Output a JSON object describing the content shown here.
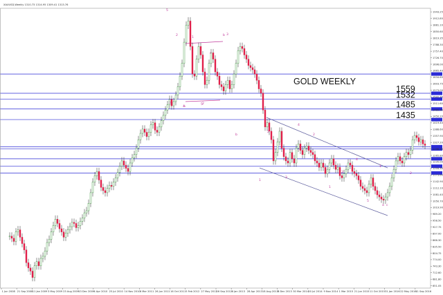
{
  "chart_data": {
    "type": "candlestick",
    "title": "GOLD WEEKLY",
    "header": "XAUUSD,Weekly  1310.73  1314.95  1309.41  1313.76",
    "y_axis": {
      "min": 640,
      "max": 1960,
      "ticks": [
        "1943.25",
        "1912.85",
        "1881.10",
        "1850.60",
        "1819.35",
        "1788.30",
        "1757.40",
        "1726.70",
        "1696.00",
        "1665.40",
        "1634.65",
        "1603.75",
        "1573.00",
        "1542.30",
        "1511.60",
        "1480.90",
        "1450.20",
        "1419.40",
        "1388.60",
        "1357.90",
        "1327.20",
        "1296.50",
        "1265.80",
        "1235.00",
        "1204.30",
        "1173.60",
        "1142.90",
        "1112.10",
        "1081.40",
        "1050.70",
        "1019.90",
        "989.20",
        "958.50",
        "927.75",
        "897.00",
        "866.30",
        "835.50",
        "804.75",
        "774.00",
        "743.30",
        "712.60",
        "681.80",
        "651.05"
      ]
    },
    "x_axis": {
      "labels": [
        "1 Jun 2008",
        "21 Sep 2008",
        "11 Jan 2009",
        "3 May 2009",
        "23 Aug 2009",
        "13 Dec 2009",
        "4 Apr 2010",
        "25 Jul 2010",
        "14 Nov 2010",
        "6 Mar 2011",
        "26 Jun 2011",
        "16 Oct 2011",
        "5 Feb 2012",
        "27 May 2012",
        "16 Sep 2012",
        "6 Jan 2013",
        "28 Apr 2013",
        "18 Aug 2013",
        "8 Dec 2013",
        "30 Mar 2014",
        "20 Jul 2014",
        "9 Nov 2014",
        "1 Mar 2015",
        "21 Jun 2015",
        "11 Oct 2015",
        "31 Jan 2016",
        "22 May 2016",
        "11 Sep 2016"
      ]
    },
    "horizontal_levels": [
      {
        "value": 1650.0,
        "label": ""
      },
      {
        "value": 1559.0,
        "label": "1559"
      },
      {
        "value": 1532.0,
        "label": "1532"
      },
      {
        "value": 1485.0,
        "label": "1485"
      },
      {
        "value": 1435.0,
        "label": "1435"
      },
      {
        "value": 1307.0,
        "label": ""
      },
      {
        "value": 1296.5,
        "label": ""
      },
      {
        "value": 1250.0,
        "label": ""
      },
      {
        "value": 1215.0,
        "label": ""
      },
      {
        "value": 1183.0,
        "label": ""
      }
    ],
    "wave_labels": [
      "5",
      "2",
      "1",
      "3",
      "b",
      "a",
      "2",
      "1",
      "2",
      "3",
      "4",
      "1",
      "2",
      "3",
      "4",
      "5",
      "1",
      "2",
      "3",
      "4",
      "5",
      "c",
      "a",
      "b",
      "c"
    ],
    "candles_summary": "Weekly gold candles from ~2008 low near 681 rising to ~1920 peak in Sep 2011, consolidating 1520-1800 through 2012, declining to ~1045 low in Dec 2015, then rallying to ~1370 in mid-2016 and settling near 1313.",
    "candles": [
      [
        0,
        885
      ],
      [
        1,
        875
      ],
      [
        2,
        860
      ],
      [
        3,
        905
      ],
      [
        4,
        915
      ],
      [
        5,
        880
      ],
      [
        6,
        850
      ],
      [
        7,
        820
      ],
      [
        8,
        760
      ],
      [
        9,
        735
      ],
      [
        10,
        720
      ],
      [
        11,
        690
      ],
      [
        12,
        745
      ],
      [
        13,
        765
      ],
      [
        14,
        745
      ],
      [
        15,
        780
      ],
      [
        16,
        790
      ],
      [
        17,
        815
      ],
      [
        18,
        855
      ],
      [
        19,
        870
      ],
      [
        20,
        905
      ],
      [
        21,
        935
      ],
      [
        22,
        965
      ],
      [
        23,
        945
      ],
      [
        24,
        920
      ],
      [
        25,
        905
      ],
      [
        26,
        880
      ],
      [
        27,
        900
      ],
      [
        28,
        915
      ],
      [
        29,
        930
      ],
      [
        30,
        950
      ],
      [
        31,
        945
      ],
      [
        32,
        925
      ],
      [
        33,
        935
      ],
      [
        34,
        955
      ],
      [
        35,
        970
      ],
      [
        36,
        995
      ],
      [
        37,
        1005
      ],
      [
        38,
        1040
      ],
      [
        39,
        1090
      ],
      [
        40,
        1140
      ],
      [
        41,
        1170
      ],
      [
        42,
        1190
      ],
      [
        43,
        1150
      ],
      [
        44,
        1115
      ],
      [
        45,
        1100
      ],
      [
        46,
        1090
      ],
      [
        47,
        1110
      ],
      [
        48,
        1125
      ],
      [
        49,
        1120
      ],
      [
        50,
        1140
      ],
      [
        51,
        1160
      ],
      [
        52,
        1185
      ],
      [
        53,
        1215
      ],
      [
        54,
        1240
      ],
      [
        55,
        1220
      ],
      [
        56,
        1205
      ],
      [
        57,
        1190
      ],
      [
        58,
        1230
      ],
      [
        59,
        1255
      ],
      [
        60,
        1270
      ],
      [
        61,
        1300
      ],
      [
        62,
        1340
      ],
      [
        63,
        1370
      ],
      [
        64,
        1390
      ],
      [
        65,
        1375
      ],
      [
        66,
        1355
      ],
      [
        67,
        1375
      ],
      [
        68,
        1410
      ],
      [
        69,
        1420
      ],
      [
        70,
        1385
      ],
      [
        71,
        1375
      ],
      [
        72,
        1400
      ],
      [
        73,
        1430
      ],
      [
        74,
        1455
      ],
      [
        75,
        1480
      ],
      [
        76,
        1505
      ],
      [
        77,
        1530
      ],
      [
        78,
        1500
      ],
      [
        79,
        1520
      ],
      [
        80,
        1550
      ],
      [
        81,
        1590
      ],
      [
        82,
        1640
      ],
      [
        83,
        1700
      ],
      [
        84,
        1800
      ],
      [
        85,
        1880
      ],
      [
        86,
        1900
      ],
      [
        87,
        1780
      ],
      [
        88,
        1650
      ],
      [
        89,
        1640
      ],
      [
        90,
        1720
      ],
      [
        91,
        1780
      ],
      [
        92,
        1740
      ],
      [
        93,
        1660
      ],
      [
        94,
        1600
      ],
      [
        95,
        1620
      ],
      [
        96,
        1700
      ],
      [
        97,
        1750
      ],
      [
        98,
        1720
      ],
      [
        99,
        1660
      ],
      [
        100,
        1640
      ],
      [
        101,
        1600
      ],
      [
        102,
        1590
      ],
      [
        103,
        1570
      ],
      [
        104,
        1600
      ],
      [
        105,
        1620
      ],
      [
        106,
        1580
      ],
      [
        107,
        1600
      ],
      [
        108,
        1650
      ],
      [
        109,
        1700
      ],
      [
        110,
        1760
      ],
      [
        111,
        1780
      ],
      [
        112,
        1770
      ],
      [
        113,
        1740
      ],
      [
        114,
        1720
      ],
      [
        115,
        1690
      ],
      [
        116,
        1680
      ],
      [
        117,
        1670
      ],
      [
        118,
        1650
      ],
      [
        119,
        1620
      ],
      [
        120,
        1580
      ],
      [
        121,
        1560
      ],
      [
        122,
        1480
      ],
      [
        123,
        1400
      ],
      [
        124,
        1420
      ],
      [
        125,
        1380
      ],
      [
        126,
        1340
      ],
      [
        127,
        1240
      ],
      [
        128,
        1280
      ],
      [
        129,
        1330
      ],
      [
        130,
        1380
      ],
      [
        131,
        1300
      ],
      [
        132,
        1260
      ],
      [
        133,
        1240
      ],
      [
        134,
        1230
      ],
      [
        135,
        1280
      ],
      [
        136,
        1250
      ],
      [
        137,
        1230
      ],
      [
        138,
        1300
      ],
      [
        139,
        1320
      ],
      [
        140,
        1290
      ],
      [
        141,
        1270
      ],
      [
        142,
        1300
      ],
      [
        143,
        1310
      ],
      [
        144,
        1290
      ],
      [
        145,
        1280
      ],
      [
        146,
        1270
      ],
      [
        147,
        1240
      ],
      [
        148,
        1230
      ],
      [
        149,
        1210
      ],
      [
        150,
        1230
      ],
      [
        151,
        1210
      ],
      [
        152,
        1180
      ],
      [
        153,
        1200
      ],
      [
        154,
        1230
      ],
      [
        155,
        1250
      ],
      [
        156,
        1220
      ],
      [
        157,
        1200
      ],
      [
        158,
        1210
      ],
      [
        159,
        1170
      ],
      [
        160,
        1160
      ],
      [
        161,
        1180
      ],
      [
        162,
        1200
      ],
      [
        163,
        1230
      ],
      [
        164,
        1220
      ],
      [
        165,
        1190
      ],
      [
        166,
        1180
      ],
      [
        167,
        1170
      ],
      [
        168,
        1150
      ],
      [
        169,
        1120
      ],
      [
        170,
        1110
      ],
      [
        171,
        1100
      ],
      [
        172,
        1090
      ],
      [
        173,
        1130
      ],
      [
        174,
        1160
      ],
      [
        175,
        1120
      ],
      [
        176,
        1100
      ],
      [
        177,
        1080
      ],
      [
        178,
        1070
      ],
      [
        179,
        1060
      ],
      [
        180,
        1055
      ],
      [
        181,
        1070
      ],
      [
        182,
        1090
      ],
      [
        183,
        1120
      ],
      [
        184,
        1160
      ],
      [
        185,
        1200
      ],
      [
        186,
        1240
      ],
      [
        187,
        1260
      ],
      [
        188,
        1240
      ],
      [
        189,
        1230
      ],
      [
        190,
        1260
      ],
      [
        191,
        1280
      ],
      [
        192,
        1270
      ],
      [
        193,
        1290
      ],
      [
        194,
        1340
      ],
      [
        195,
        1360
      ],
      [
        196,
        1350
      ],
      [
        197,
        1330
      ],
      [
        198,
        1340
      ],
      [
        199,
        1320
      ],
      [
        200,
        1313
      ]
    ]
  }
}
